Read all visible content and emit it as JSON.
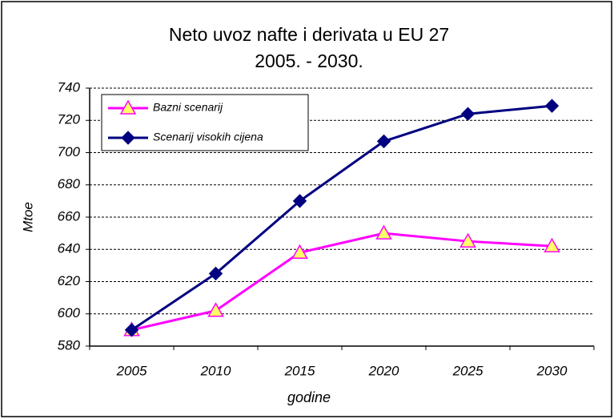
{
  "chart_data": {
    "type": "line",
    "title": "Neto uvoz nafte i derivata u EU 27",
    "subtitle": "2005. - 2030.",
    "x_label": "godine",
    "y_label": "Mtoe",
    "categories": [
      "2005",
      "2010",
      "2015",
      "2020",
      "2025",
      "2030"
    ],
    "series": [
      {
        "name": "Bazni scenarij",
        "color": "#ff00ff",
        "marker_color": "#ffff66",
        "marker": "triangle",
        "values": [
          590,
          602,
          638,
          650,
          645,
          642
        ]
      },
      {
        "name": "Scenarij visokih cijena",
        "color": "#000080",
        "marker_color": "#000080",
        "marker": "diamond",
        "values": [
          590,
          625,
          670,
          707,
          724,
          729
        ]
      }
    ],
    "ylim": [
      580,
      740
    ],
    "yticks": [
      580,
      600,
      620,
      640,
      660,
      680,
      700,
      720,
      740
    ],
    "grid": true,
    "legend": "upper left"
  }
}
